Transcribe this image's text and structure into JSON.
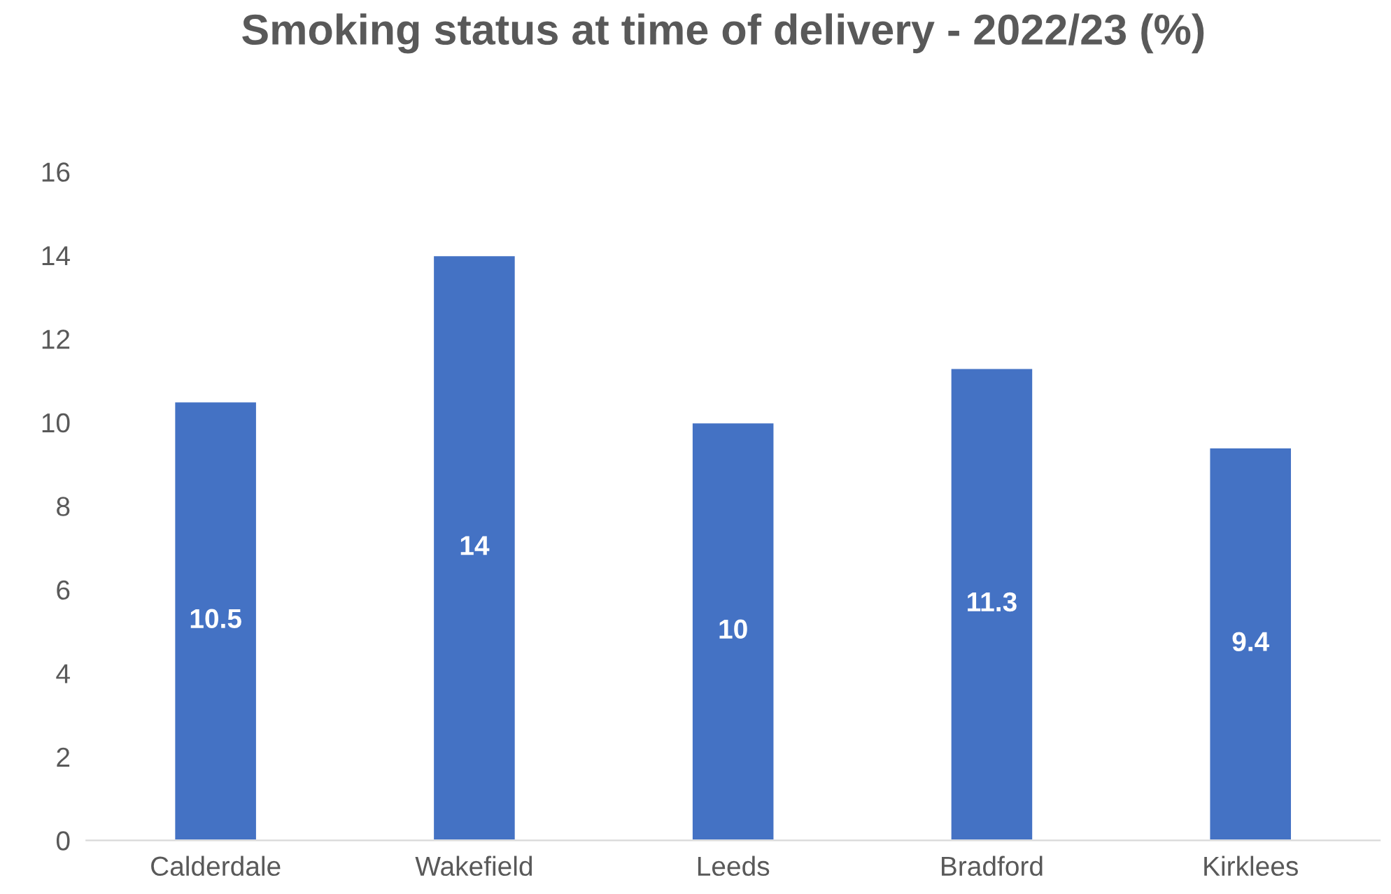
{
  "chart_data": {
    "type": "bar",
    "title": "Smoking status at time of delivery - 2022/23 (%)",
    "categories": [
      "Calderdale",
      "Wakefield",
      "Leeds",
      "Bradford",
      "Kirklees"
    ],
    "values": [
      10.5,
      14,
      10,
      11.3,
      9.4
    ],
    "color": "#4472c4",
    "ylim": [
      0,
      16
    ],
    "yticks": [
      0,
      2,
      4,
      6,
      8,
      10,
      12,
      14,
      16
    ],
    "grid": false,
    "data_labels": true
  }
}
